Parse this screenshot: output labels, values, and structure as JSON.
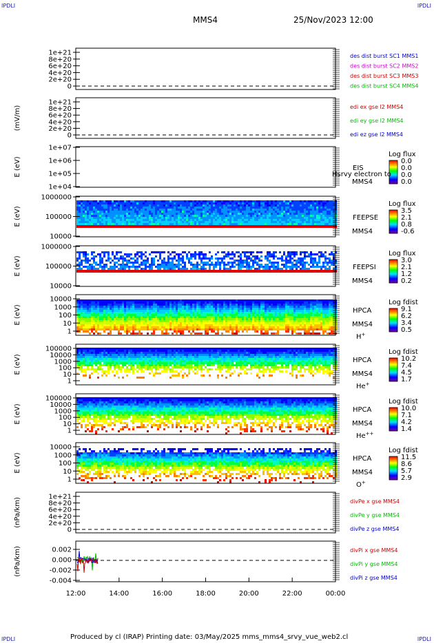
{
  "corners": {
    "tl": "IPDLI",
    "tr": "IPDLI",
    "bl": "IPDLI",
    "br": "IPDLI"
  },
  "header": {
    "spacecraft": "MMS4",
    "datetime": "25/Nov/2023 12:00"
  },
  "footer": {
    "text": "Produced by cl (IRAP)   Printing date: 03/May/2025   mms_mms4_srvy_vue_web2.cl"
  },
  "chart_data": {
    "type": "multi-panel spectrogram and line plot",
    "x_ticks": [
      "12:00",
      "14:00",
      "16:00",
      "18:00",
      "20:00",
      "22:00",
      "00:00"
    ],
    "panels": [
      {
        "id": "p1",
        "kind": "line",
        "ylabel": "",
        "ytick_labels": [
          "1e+21",
          "8e+20",
          "6e+20",
          "4e+20",
          "2e+20",
          "0"
        ],
        "ytick_values": [
          1e+21,
          8e+20,
          6e+20,
          4e+20,
          2e+20,
          0
        ],
        "legend": [
          {
            "text": "des dist burst SC1 MMS1",
            "color": "#0000cc"
          },
          {
            "text": "des dist burst SC2 MMS2",
            "color": "#cc00cc"
          },
          {
            "text": "des dist burst SC3 MMS3",
            "color": "#cc0000"
          },
          {
            "text": "des dist burst SC4 MMS4",
            "color": "#00bb00"
          }
        ]
      },
      {
        "id": "p2",
        "kind": "line",
        "ylabel": "(mV/m)",
        "ytick_labels": [
          "1e+21",
          "8e+20",
          "6e+20",
          "4e+20",
          "2e+20",
          "0"
        ],
        "ytick_values": [
          1e+21,
          8e+20,
          6e+20,
          4e+20,
          2e+20,
          0
        ],
        "legend": [
          {
            "text": "edi ex gse l2 MMS4",
            "color": "#cc0000"
          },
          {
            "text": "edi ey gse l2 MMS4",
            "color": "#00bb00"
          },
          {
            "text": "edi ez gse l2 MMS4",
            "color": "#0000cc"
          }
        ]
      },
      {
        "id": "p3",
        "kind": "spectrogram",
        "ylabel": "E (eV)",
        "ytick_labels": [
          "1e+07",
          "1e+06",
          "1e+05",
          "1e+04"
        ],
        "ytick_values": [
          10000000.0,
          1000000.0,
          100000.0,
          10000.0
        ],
        "label_lines": [
          "EIS",
          "MMS4"
        ],
        "overlay_text": "Hsrvy electron to",
        "colorbar_title": "Log flux",
        "colorbar_ticks": [
          "0.0",
          "0.0",
          "0.0",
          "0.0"
        ]
      },
      {
        "id": "p4",
        "kind": "spectrogram",
        "ylabel": "E (eV)",
        "ytick_labels": [
          "1000000",
          "100000",
          "10000"
        ],
        "ytick_values": [
          1000000.0,
          100000.0,
          10000.0
        ],
        "label_lines": [
          "FEEPSE",
          "MMS4"
        ],
        "colorbar_title": "Log flux",
        "colorbar_ticks": [
          "3.5",
          "2.1",
          "0.8",
          "-0.6"
        ]
      },
      {
        "id": "p5",
        "kind": "spectrogram",
        "ylabel": "E (eV)",
        "ytick_labels": [
          "1000000",
          "100000",
          "10000"
        ],
        "ytick_values": [
          1000000.0,
          100000.0,
          10000.0
        ],
        "label_lines": [
          "FEEPSI",
          "MMS4"
        ],
        "colorbar_title": "Log flux",
        "colorbar_ticks": [
          "3.0",
          "2.1",
          "1.2",
          "0.2"
        ]
      },
      {
        "id": "p6",
        "kind": "spectrogram",
        "ylabel": "E (eV)",
        "ytick_labels": [
          "10000",
          "1000",
          "100",
          "10",
          "1"
        ],
        "ytick_values": [
          10000.0,
          1000.0,
          100.0,
          10.0,
          1
        ],
        "label_lines": [
          "HPCA",
          "MMS4"
        ],
        "species": "H",
        "species_sup": "+",
        "colorbar_title": "Log fdist",
        "colorbar_ticks": [
          "9.1",
          "6.2",
          "3.4",
          "0.5"
        ]
      },
      {
        "id": "p7",
        "kind": "spectrogram",
        "ylabel": "E (eV)",
        "ytick_labels": [
          "100000",
          "10000",
          "1000",
          "100",
          "10",
          "1"
        ],
        "ytick_values": [
          100000.0,
          10000.0,
          1000.0,
          100.0,
          10.0,
          1
        ],
        "label_lines": [
          "HPCA",
          "MMS4"
        ],
        "species": "He",
        "species_sup": "+",
        "colorbar_title": "Log fdist",
        "colorbar_ticks": [
          "10.2",
          "7.4",
          "4.5",
          "1.7"
        ]
      },
      {
        "id": "p8",
        "kind": "spectrogram",
        "ylabel": "E (eV)",
        "ytick_labels": [
          "100000",
          "10000",
          "1000",
          "100",
          "10",
          "1"
        ],
        "ytick_values": [
          100000.0,
          10000.0,
          1000.0,
          100.0,
          10.0,
          1
        ],
        "label_lines": [
          "HPCA",
          "MMS4"
        ],
        "species": "He",
        "species_sup": "++",
        "colorbar_title": "Log fdist",
        "colorbar_ticks": [
          "10.0",
          "7.1",
          "4.2",
          "1.4"
        ]
      },
      {
        "id": "p9",
        "kind": "spectrogram",
        "ylabel": "E (eV)",
        "ytick_labels": [
          "10000",
          "1000",
          "100",
          "10",
          "1"
        ],
        "ytick_values": [
          10000.0,
          1000.0,
          100.0,
          10.0,
          1
        ],
        "label_lines": [
          "HPCA",
          "MMS4"
        ],
        "species": "O",
        "species_sup": "+",
        "colorbar_title": "Log fdist",
        "colorbar_ticks": [
          "11.5",
          "8.6",
          "5.7",
          "2.9"
        ]
      },
      {
        "id": "p10",
        "kind": "line",
        "ylabel": "(nPa/km)",
        "ytick_labels": [
          "1e+21",
          "8e+20",
          "6e+20",
          "4e+20",
          "2e+20",
          "0"
        ],
        "ytick_values": [
          1e+21,
          8e+20,
          6e+20,
          4e+20,
          2e+20,
          0
        ],
        "legend": [
          {
            "text": "divPe x gse MMS4",
            "color": "#cc0000"
          },
          {
            "text": "divPe y gse MMS4",
            "color": "#00bb00"
          },
          {
            "text": "divPe z gse MMS4",
            "color": "#0000cc"
          }
        ]
      },
      {
        "id": "p11",
        "kind": "line",
        "ylabel": "(nPa/km)",
        "ytick_labels": [
          "0.002",
          "0.000",
          "-0.002",
          "-0.004"
        ],
        "ytick_values": [
          0.002,
          0,
          -0.002,
          -0.004
        ],
        "legend": [
          {
            "text": "divPi x gse MMS4",
            "color": "#cc0000"
          },
          {
            "text": "divPi y gse MMS4",
            "color": "#00bb00"
          },
          {
            "text": "divPi z gse MMS4",
            "color": "#0000cc"
          }
        ],
        "data_range_hours": [
          0,
          1
        ]
      }
    ]
  }
}
